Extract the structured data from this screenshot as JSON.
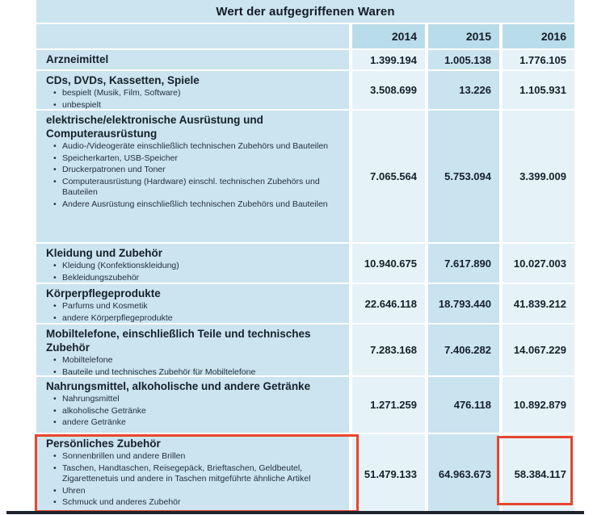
{
  "title": "Wert der aufgegriffenen Waren",
  "columns": [
    "2014",
    "2015",
    "2016"
  ],
  "rows": [
    {
      "label": "Arzneimittel",
      "subitems": [],
      "values": [
        "1.399.194",
        "1.005.138",
        "1.776.105"
      ]
    },
    {
      "label": "CDs, DVDs, Kassetten, Spiele",
      "subitems": [
        "bespielt (Musik, Film, Software)",
        "unbespielt"
      ],
      "values": [
        "3.508.699",
        "13.226",
        "1.105.931"
      ]
    },
    {
      "label": "elektrische/elektronische Ausrüstung und Computerausrüstung",
      "subitems": [
        "Audio-/Videogeräte einschließlich technischen Zubehörs und Bauteilen",
        "Speicherkarten, USB-Speicher",
        "Druckerpatronen und Toner",
        "Computerausrüstung (Hardware) einschl. technischen Zubehörs und Bauteilen",
        "Andere Ausrüstung einschließlich technischen Zubehörs und Bauteilen"
      ],
      "values": [
        "7.065.564",
        "5.753.094",
        "3.399.009"
      ]
    },
    {
      "label": "Kleidung und Zubehör",
      "subitems": [
        "Kleidung (Konfektionskleidung)",
        "Bekleidungszubehör"
      ],
      "values": [
        "10.940.675",
        "7.617.890",
        "10.027.003"
      ]
    },
    {
      "label": "Körperpflegeprodukte",
      "subitems": [
        "Parfums und Kosmetik",
        "andere Körperpflegeprodukte"
      ],
      "values": [
        "22.646.118",
        "18.793.440",
        "41.839.212"
      ]
    },
    {
      "label": "Mobiltelefone, einschließlich Teile und technisches Zubehör",
      "subitems": [
        "Mobiltelefone",
        "Bauteile und technisches Zubehör für Mobiltelefone"
      ],
      "values": [
        "7.283.168",
        "7.406.282",
        "14.067.229"
      ]
    },
    {
      "label": "Nahrungsmittel, alkoholische und andere Getränke",
      "subitems": [
        "Nahrungsmittel",
        "alkoholische Getränke",
        "andere Getränke"
      ],
      "values": [
        "1.271.259",
        "476.118",
        "10.892.879"
      ]
    },
    {
      "label": "Persönliches Zubehör",
      "subitems": [
        "Sonnenbrillen und andere Brillen",
        "Taschen, Handtaschen, Reisegepäck, Brieftaschen, Geldbeutel, Zigarettenetuis und andere in Taschen mitgeführte ähnliche Artikel",
        "Uhren",
        "Schmuck und anderes Zubehör"
      ],
      "values": [
        "51.479.133",
        "64.963.673",
        "58.384.117"
      ],
      "highlighted": true
    }
  ],
  "highlight": {
    "row_label": "Persönliches Zubehör",
    "label_box": true,
    "value_box_column": "2016",
    "value_box_value": "58.384.117"
  },
  "colors": {
    "table_base_blue": "#cbe4ef",
    "column_light_blue": "#e5f2f8",
    "column_mid_blue": "#c9e3ef",
    "year_header_blue": "#b9dcea",
    "highlight_red": "#e8462e",
    "text_dark": "#15202b",
    "bottom_edge_dark": "#1e2530"
  },
  "chart_data": {
    "type": "table",
    "title": "Wert der aufgegriffenen Waren",
    "categories": [
      "Arzneimittel",
      "CDs, DVDs, Kassetten, Spiele",
      "elektrische/elektronische Ausrüstung und Computerausrüstung",
      "Kleidung und Zubehör",
      "Körperpflegeprodukte",
      "Mobiltelefone, einschließlich Teile und technisches Zubehör",
      "Nahrungsmittel, alkoholische und andere Getränke",
      "Persönliches Zubehör"
    ],
    "series": [
      {
        "name": "2014",
        "values": [
          1399194,
          3508699,
          7065564,
          10940675,
          22646118,
          7283168,
          1271259,
          51479133
        ]
      },
      {
        "name": "2015",
        "values": [
          1005138,
          13226,
          5753094,
          7617890,
          18793440,
          7406282,
          476118,
          64963673
        ]
      },
      {
        "name": "2016",
        "values": [
          1776105,
          1105931,
          3399009,
          10027003,
          41839212,
          14067229,
          10892879,
          58384117
        ]
      }
    ]
  }
}
